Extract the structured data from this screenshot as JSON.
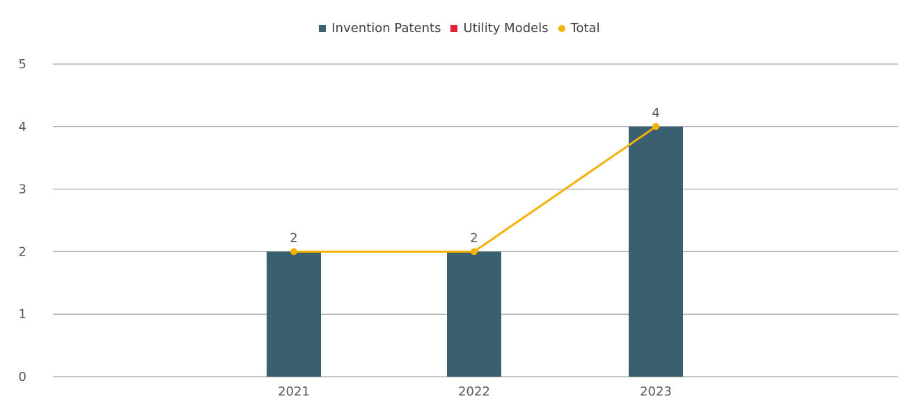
{
  "chart_data": {
    "type": "bar",
    "categories": [
      "2021",
      "2022",
      "2023"
    ],
    "series": [
      {
        "name": "Invention Patents",
        "type": "bar",
        "values": [
          2,
          2,
          4
        ]
      },
      {
        "name": "Utility Models",
        "type": "bar",
        "values": [
          0,
          0,
          0
        ]
      },
      {
        "name": "Total",
        "type": "line",
        "values": [
          2,
          2,
          4
        ]
      }
    ],
    "data_labels": [
      "2",
      "2",
      "4"
    ],
    "ylim": [
      0,
      5
    ],
    "yticks": [
      "0",
      "1",
      "2",
      "3",
      "4",
      "5"
    ],
    "grid": true,
    "legend_position": "top-center",
    "title": "",
    "xlabel": "",
    "ylabel": "",
    "colors": {
      "invention": "#3a5f70",
      "utility": "#e31e36",
      "total": "#f5b100",
      "grid": "#8c8c8c",
      "text": "#595959"
    }
  }
}
